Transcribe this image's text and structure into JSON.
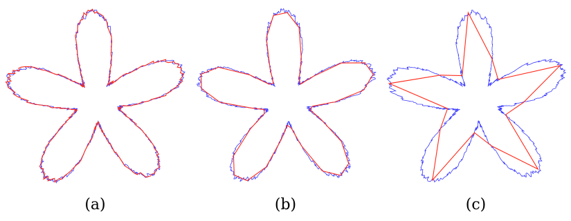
{
  "panels": [
    {
      "caption": "(a)",
      "approximation": "fine"
    },
    {
      "caption": "(b)",
      "approximation": "medium"
    },
    {
      "caption": "(c)",
      "approximation": "coarse"
    }
  ],
  "colors": {
    "noisy_contour": "#3b3bff",
    "polygon": "#ff2a1a",
    "background": "#ffffff"
  }
}
